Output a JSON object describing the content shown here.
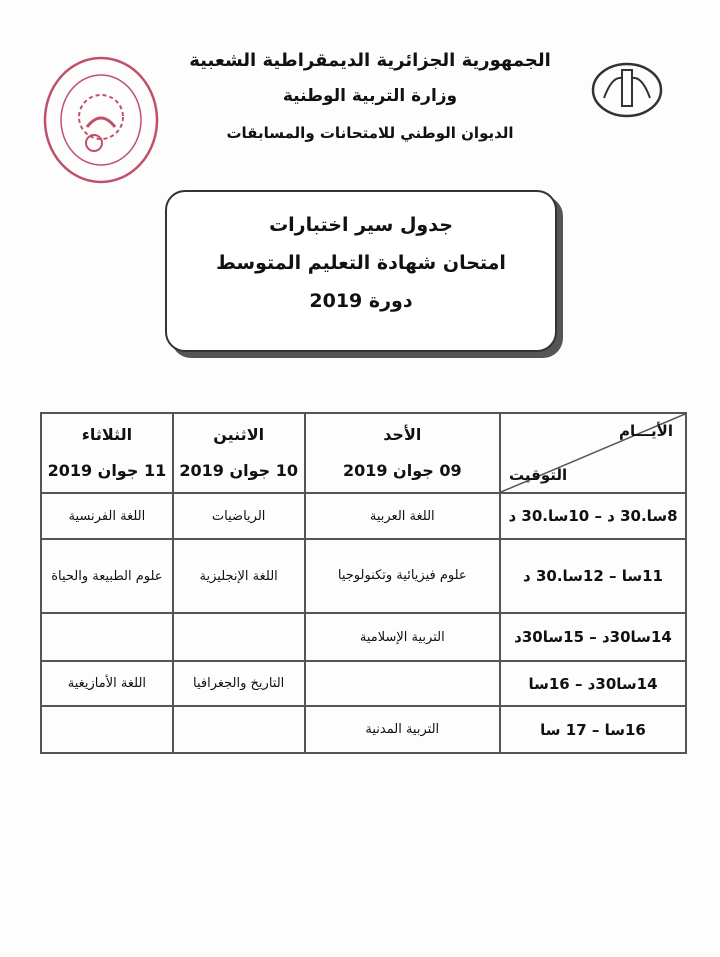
{
  "header": {
    "line1": "الجمهورية الجزائرية الديمقراطية الشعبية",
    "line2": "وزارة التربية الوطنية",
    "line3": "الديوان الوطني للامتحانات والمسابقات"
  },
  "title": {
    "line1": "جدول سير اختبارات",
    "line2": "امتحان شهادة التعليم المتوسط",
    "line3": "دورة 2019"
  },
  "colors": {
    "seal": "#c0506a",
    "ink": "#111111",
    "border": "#555555"
  },
  "table": {
    "corner_days": "الأيـــام",
    "corner_time": "التوقيت",
    "days": [
      {
        "name": "الأحد",
        "date": "09 جوان 2019"
      },
      {
        "name": "الاثنين",
        "date": "10 جوان 2019"
      },
      {
        "name": "الثلاثاء",
        "date": "11 جوان 2019"
      }
    ],
    "rows": [
      {
        "time": "8سا.30 د – 10سا.30 د",
        "cells": [
          "اللغة العربية",
          "الرياضيات",
          "اللغة الفرنسية"
        ]
      },
      {
        "time": "11سا – 12سا.30 د",
        "cells": [
          "علوم فيزيائية وتكنولوجيا",
          "اللغة الإنجليزية",
          "علوم الطبيعة والحياة"
        ]
      },
      {
        "time": "14سا30د – 15سا30د",
        "cells": [
          "التربية الإسلامية",
          "",
          ""
        ]
      },
      {
        "time": "14سا30د – 16سا",
        "cells": [
          "",
          "التاريخ والجغرافيا",
          "اللغة الأمازيغية"
        ]
      },
      {
        "time": "16سا – 17 سا",
        "cells": [
          "التربية المدنية",
          "",
          ""
        ]
      }
    ]
  }
}
